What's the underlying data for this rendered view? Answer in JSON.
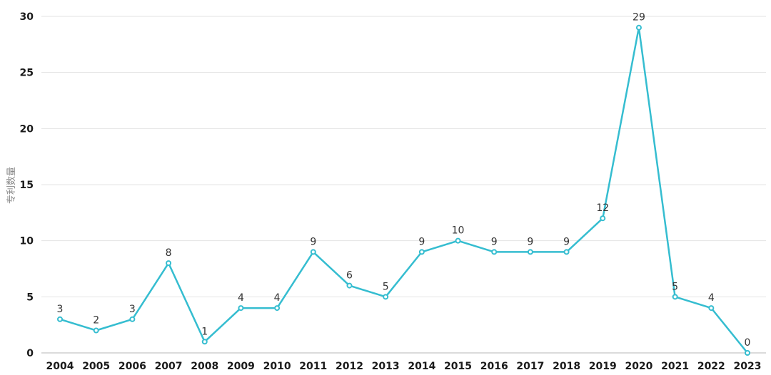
{
  "chart_data": {
    "type": "line",
    "title": "",
    "xlabel": "",
    "ylabel": "专利数量",
    "categories": [
      "2004",
      "2005",
      "2006",
      "2007",
      "2008",
      "2009",
      "2010",
      "2011",
      "2012",
      "2013",
      "2014",
      "2015",
      "2016",
      "2017",
      "2018",
      "2019",
      "2020",
      "2021",
      "2022",
      "2023"
    ],
    "values": [
      3,
      2,
      3,
      8,
      1,
      4,
      4,
      9,
      6,
      5,
      9,
      10,
      9,
      9,
      9,
      12,
      29,
      5,
      4,
      0
    ],
    "ylim": [
      0,
      30
    ],
    "yticks": [
      0,
      5,
      10,
      15,
      20,
      25,
      30
    ],
    "grid": true,
    "data_labels": true,
    "color": "#35bdd0"
  }
}
